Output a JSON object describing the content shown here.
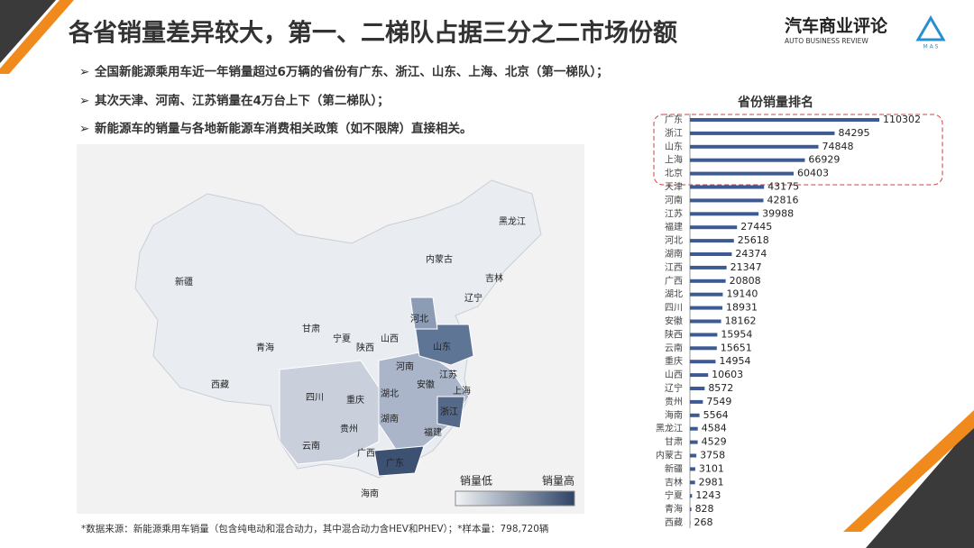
{
  "title": "各省销量差异较大，第一、二梯队占据三分之二市场份额",
  "logo": {
    "name": "汽车商业评论",
    "english": "AUTO BUSINESS REVIEW",
    "mark": "M A S"
  },
  "bullets": [
    "全国新能源乘用车近一年销量超过6万辆的省份有广东、浙江、山东、上海、北京（第一梯队）；",
    "其次天津、河南、江苏销量在4万台上下（第二梯队）；",
    "新能源车的销量与各地新能源车消费相关政策（如不限牌）直接相关。"
  ],
  "map": {
    "labels": [
      "黑龙江",
      "内蒙古",
      "吉林",
      "新疆",
      "辽宁",
      "河北",
      "甘肃",
      "宁夏",
      "青海",
      "陕西",
      "山西",
      "山东",
      "河南",
      "江苏",
      "安徽",
      "西藏",
      "上海",
      "四川",
      "重庆",
      "湖北",
      "浙江",
      "湖南",
      "贵州",
      "福建",
      "云南",
      "广西",
      "广东",
      "海南"
    ],
    "legend": [
      "销量低",
      "销量高"
    ]
  },
  "footnote": "*数据来源：新能源乘用车销量（包含纯电动和混合动力，其中混合动力含HEV和PHEV）；*样本量：798,720辆",
  "chart_data": {
    "type": "hbar",
    "title": "省份销量排名",
    "categories": [
      "广东",
      "浙江",
      "山东",
      "上海",
      "北京",
      "天津",
      "河南",
      "江苏",
      "福建",
      "河北",
      "湖南",
      "江西",
      "广西",
      "湖北",
      "四川",
      "安徽",
      "陕西",
      "云南",
      "重庆",
      "山西",
      "辽宁",
      "贵州",
      "海南",
      "黑龙江",
      "甘肃",
      "内蒙古",
      "新疆",
      "吉林",
      "宁夏",
      "青海",
      "西藏"
    ],
    "series": [
      {
        "color": "#3d5a94",
        "values": [
          110302,
          84295,
          74848,
          66929,
          60403,
          43175,
          42816,
          39988,
          27445,
          25618,
          24374,
          21347,
          20808,
          19140,
          18931,
          18162,
          15954,
          15651,
          14954,
          10603,
          8572,
          7549,
          5564,
          4584,
          4529,
          3758,
          3101,
          2981,
          1243,
          828,
          268
        ]
      }
    ]
  }
}
